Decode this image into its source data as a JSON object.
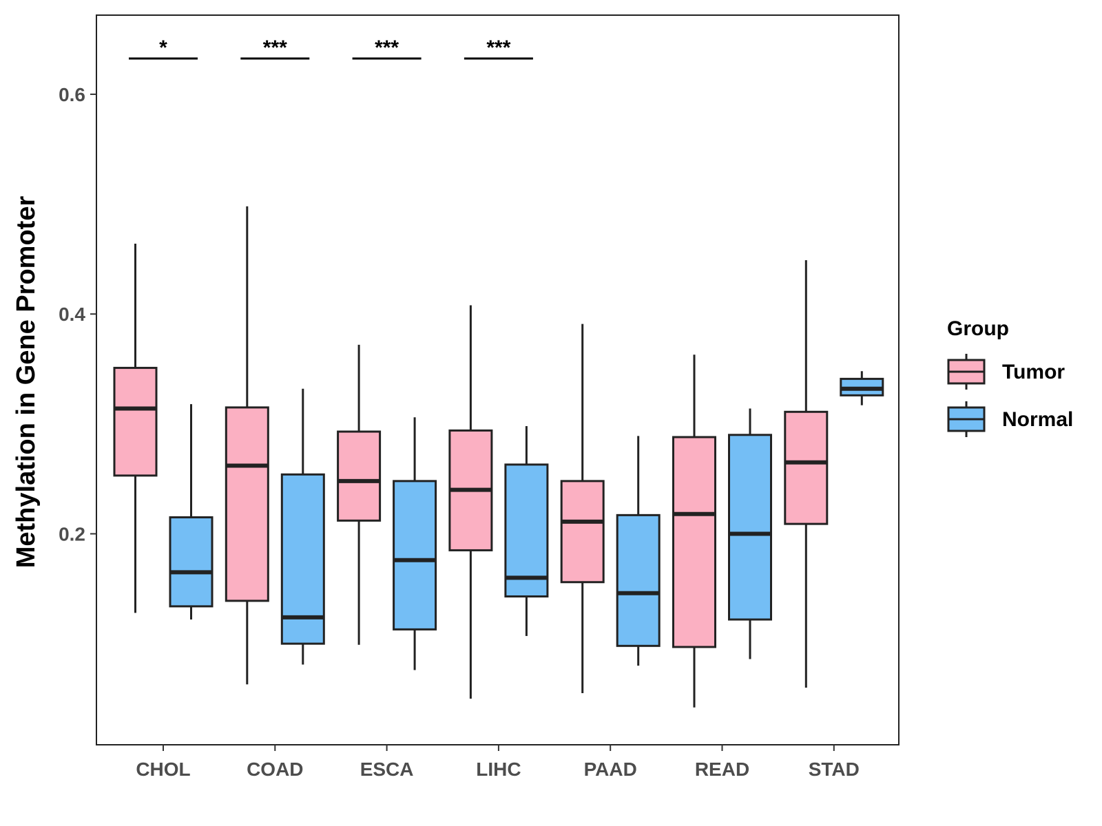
{
  "chart_data": {
    "type": "boxplot",
    "title": "",
    "xlabel": "",
    "ylabel": "Methylation in Gene Promoter",
    "ylim": [
      0.008,
      0.672
    ],
    "yticks": [
      0.2,
      0.4,
      0.6
    ],
    "ytick_labels": [
      "0.2",
      "0.4",
      "0.6"
    ],
    "grid": false,
    "categories": [
      "CHOL",
      "COAD",
      "ESCA",
      "LIHC",
      "PAAD",
      "READ",
      "STAD"
    ],
    "legend": {
      "title": "Group",
      "position": "right",
      "entries": [
        {
          "name": "Tumor",
          "color": "#FBB0C2"
        },
        {
          "name": "Normal",
          "color": "#74BEF5"
        }
      ]
    },
    "series": [
      {
        "name": "Tumor",
        "color": "#FBB0C2",
        "boxes": [
          {
            "category": "CHOL",
            "min": 0.128,
            "q1": 0.253,
            "median": 0.314,
            "q3": 0.351,
            "max": 0.464
          },
          {
            "category": "COAD",
            "min": 0.063,
            "q1": 0.139,
            "median": 0.262,
            "q3": 0.315,
            "max": 0.498
          },
          {
            "category": "ESCA",
            "min": 0.099,
            "q1": 0.212,
            "median": 0.248,
            "q3": 0.293,
            "max": 0.372
          },
          {
            "category": "LIHC",
            "min": 0.05,
            "q1": 0.185,
            "median": 0.24,
            "q3": 0.294,
            "max": 0.408
          },
          {
            "category": "PAAD",
            "min": 0.055,
            "q1": 0.156,
            "median": 0.211,
            "q3": 0.248,
            "max": 0.391
          },
          {
            "category": "READ",
            "min": 0.042,
            "q1": 0.097,
            "median": 0.218,
            "q3": 0.288,
            "max": 0.363
          },
          {
            "category": "STAD",
            "min": 0.06,
            "q1": 0.209,
            "median": 0.265,
            "q3": 0.311,
            "max": 0.449
          }
        ]
      },
      {
        "name": "Normal",
        "color": "#74BEF5",
        "boxes": [
          {
            "category": "CHOL",
            "min": 0.122,
            "q1": 0.134,
            "median": 0.165,
            "q3": 0.215,
            "max": 0.318
          },
          {
            "category": "COAD",
            "min": 0.081,
            "q1": 0.1,
            "median": 0.124,
            "q3": 0.254,
            "max": 0.332
          },
          {
            "category": "ESCA",
            "min": 0.076,
            "q1": 0.113,
            "median": 0.176,
            "q3": 0.248,
            "max": 0.306
          },
          {
            "category": "LIHC",
            "min": 0.107,
            "q1": 0.143,
            "median": 0.16,
            "q3": 0.263,
            "max": 0.298
          },
          {
            "category": "PAAD",
            "min": 0.08,
            "q1": 0.098,
            "median": 0.146,
            "q3": 0.217,
            "max": 0.289
          },
          {
            "category": "READ",
            "min": 0.086,
            "q1": 0.122,
            "median": 0.2,
            "q3": 0.29,
            "max": 0.314
          },
          {
            "category": "STAD",
            "min": 0.317,
            "q1": 0.326,
            "median": 0.332,
            "q3": 0.341,
            "max": 0.348
          }
        ]
      }
    ],
    "annotations": [
      {
        "category": "CHOL",
        "label": "*",
        "y": 0.63
      },
      {
        "category": "COAD",
        "label": "***",
        "y": 0.63
      },
      {
        "category": "ESCA",
        "label": "***",
        "y": 0.63
      },
      {
        "category": "LIHC",
        "label": "***",
        "y": 0.63
      }
    ]
  }
}
